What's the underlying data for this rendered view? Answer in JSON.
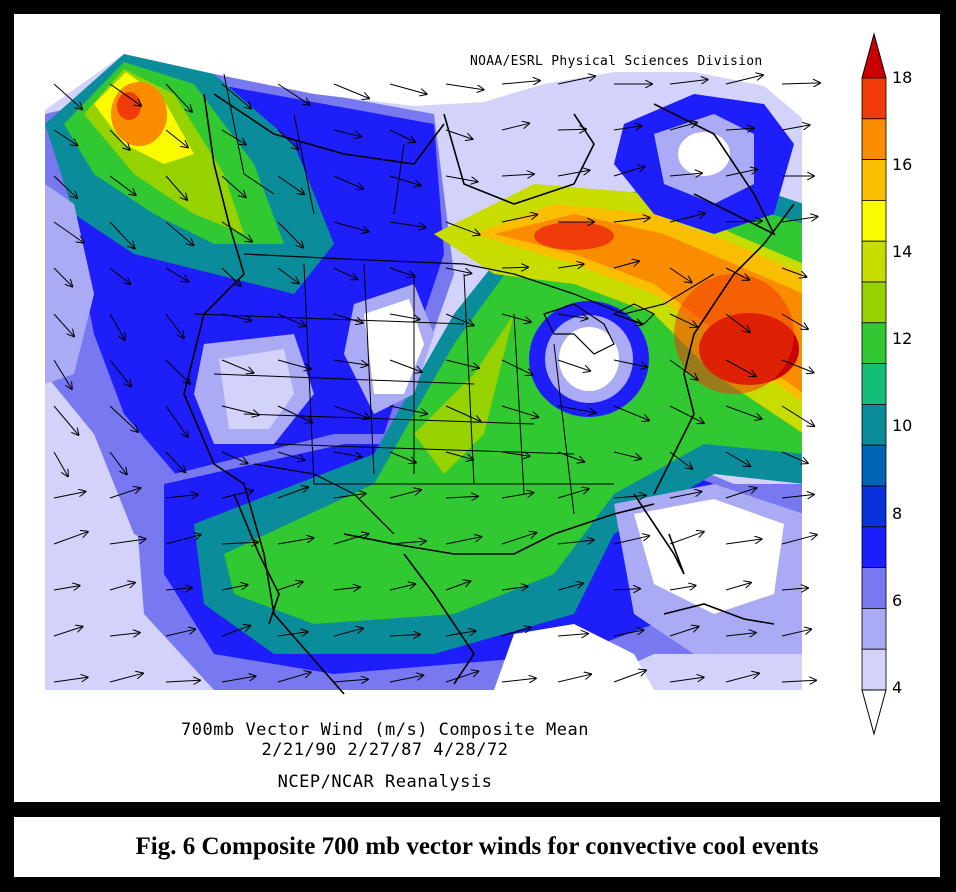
{
  "figure": {
    "credit": "NOAA/ESRL Physical Sciences Division",
    "title_line1": "700mb Vector Wind (m/s) Composite Mean",
    "title_line2": "2/21/90 2/27/87 4/28/72",
    "title_line3": "NCEP/NCAR Reanalysis",
    "caption": "Fig. 6 Composite 700 mb vector winds for convective cool events"
  },
  "colorbar": {
    "labels": [
      "18",
      "16",
      "14",
      "12",
      "10",
      "8",
      "6",
      "4"
    ],
    "colors": [
      "#c80000",
      "#f03c0a",
      "#fa8c00",
      "#fabe00",
      "#fafa00",
      "#c8dc00",
      "#96d200",
      "#32c832",
      "#14be78",
      "#0a8c9b",
      "#0064b4",
      "#0a32dc",
      "#1e1efa",
      "#7878f0",
      "#aaaaf5",
      "#d2d2fa",
      "#ffffff"
    ]
  },
  "map": {
    "region": "North America",
    "variable": "700mb vector wind speed",
    "units": "m/s",
    "highlights": [
      {
        "area": "Gulf of Alaska",
        "speed": "16+"
      },
      {
        "area": "Great Lakes / Northeast corridor",
        "speed": "16"
      },
      {
        "area": "Off the Mid-Atlantic coast",
        "speed": "18"
      },
      {
        "area": "Labrador / Hudson area minimum",
        "speed": "<4"
      },
      {
        "area": "Northern Plains minimum",
        "speed": "<4"
      },
      {
        "area": "Great Lakes minimum",
        "speed": "<4"
      },
      {
        "area": "Caribbean minimum",
        "speed": "<4"
      }
    ]
  }
}
